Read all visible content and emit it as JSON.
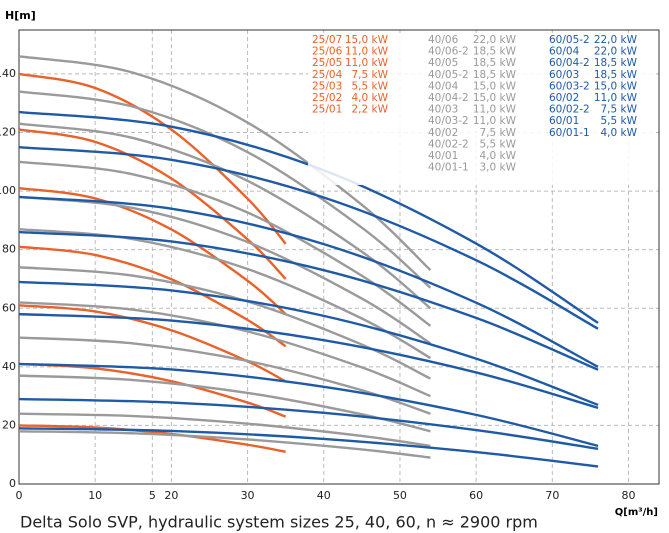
{
  "chart_data": {
    "type": "line",
    "ylabel": "H[m]",
    "xlabel": "Q[m³/h]",
    "caption": "Delta Solo SVP, hydraulic system sizes 25, 40, 60, n ≈ 2900 rpm",
    "xlim": [
      0,
      84
    ],
    "ylim": [
      0,
      155
    ],
    "xticks": [
      0,
      10,
      {
        "value": 17.5,
        "label": "5"
      },
      20,
      30,
      40,
      50,
      60,
      70,
      80
    ],
    "yticks": [
      0,
      20,
      40,
      60,
      80,
      100,
      120,
      140
    ],
    "grid": true,
    "series": [
      {
        "name": "25/07",
        "power": "15,0  kW",
        "color": "#e8622a",
        "x": [
          0,
          10,
          20,
          30,
          35
        ],
        "values": [
          140,
          135.2,
          121,
          97.4,
          82
        ]
      },
      {
        "name": "25/06",
        "power": "11,0  kW",
        "color": "#e8622a",
        "x": [
          0,
          10,
          20,
          30,
          35
        ],
        "values": [
          121,
          116.8,
          104.3,
          83.5,
          70
        ]
      },
      {
        "name": "25/05",
        "power": "11,0  kW",
        "color": "#e8622a",
        "x": [
          0,
          10,
          20,
          30,
          35
        ],
        "values": [
          101,
          97.5,
          86.9,
          69.4,
          58
        ]
      },
      {
        "name": "25/04",
        "power": "7,5  kW",
        "color": "#e8622a",
        "x": [
          0,
          10,
          20,
          30,
          35
        ],
        "values": [
          81,
          78.2,
          69.9,
          56,
          47
        ]
      },
      {
        "name": "25/03",
        "power": "5,5  kW",
        "color": "#e8622a",
        "x": [
          0,
          10,
          20,
          30,
          35
        ],
        "values": [
          61,
          58.9,
          52.5,
          41.9,
          35
        ]
      },
      {
        "name": "25/02",
        "power": "4,0  kW",
        "color": "#e8622a",
        "x": [
          0,
          10,
          20,
          30,
          35
        ],
        "values": [
          41,
          39.5,
          35.1,
          27.8,
          23
        ]
      },
      {
        "name": "25/01",
        "power": "2,2  kW",
        "color": "#e8622a",
        "x": [
          0,
          10,
          20,
          30,
          35
        ],
        "values": [
          20,
          19.3,
          17.1,
          13.4,
          11
        ]
      },
      {
        "name": "40/06",
        "power": "22,0  kW",
        "color": "#9a9a9a",
        "x": [
          0,
          15,
          30,
          45,
          54
        ],
        "values": [
          146,
          140.4,
          123.4,
          95.3,
          73
        ]
      },
      {
        "name": "40/06-2",
        "power": "18,5  kW",
        "color": "#9a9a9a",
        "x": [
          0,
          15,
          30,
          45,
          54
        ],
        "values": [
          134,
          128.8,
          113.3,
          87.5,
          67
        ]
      },
      {
        "name": "40/05",
        "power": "18,5  kW",
        "color": "#9a9a9a",
        "x": [
          0,
          15,
          30,
          45,
          54
        ],
        "values": [
          123,
          118.1,
          103.5,
          79.3,
          60
        ]
      },
      {
        "name": "40/05-2",
        "power": "18,5  kW",
        "color": "#9a9a9a",
        "x": [
          0,
          15,
          30,
          45,
          54
        ],
        "values": [
          110,
          105.7,
          92.7,
          71.1,
          54
        ]
      },
      {
        "name": "40/04",
        "power": "15,0  kW",
        "color": "#9a9a9a",
        "x": [
          0,
          15,
          30,
          45,
          54
        ],
        "values": [
          98,
          94.2,
          82.6,
          63.3,
          48
        ]
      },
      {
        "name": "40/04-2",
        "power": "15,0  kW",
        "color": "#9a9a9a",
        "x": [
          0,
          15,
          30,
          45,
          54
        ],
        "values": [
          87,
          83.6,
          73.4,
          56.5,
          43
        ]
      },
      {
        "name": "40/03",
        "power": "11,0  kW",
        "color": "#9a9a9a",
        "x": [
          0,
          15,
          30,
          45,
          54
        ],
        "values": [
          74,
          71.1,
          62.3,
          47.6,
          36
        ]
      },
      {
        "name": "40/03-2",
        "power": "11,0  kW",
        "color": "#9a9a9a",
        "x": [
          0,
          15,
          30,
          45,
          54
        ],
        "values": [
          62,
          59.5,
          52.1,
          39.8,
          30
        ]
      },
      {
        "name": "40/02",
        "power": "7,5  kW",
        "color": "#9a9a9a",
        "x": [
          0,
          15,
          30,
          45,
          54
        ],
        "values": [
          50,
          48,
          42,
          32,
          24
        ]
      },
      {
        "name": "40/02-2",
        "power": "5,5  kW",
        "color": "#9a9a9a",
        "x": [
          0,
          15,
          30,
          45,
          54
        ],
        "values": [
          37,
          35.5,
          31.1,
          23.8,
          18
        ]
      },
      {
        "name": "40/01",
        "power": "4,0  kW",
        "color": "#9a9a9a",
        "x": [
          0,
          15,
          30,
          45,
          54
        ],
        "values": [
          24,
          23.2,
          20.6,
          16.4,
          13
        ]
      },
      {
        "name": "40/01-1",
        "power": "3,0  kW",
        "color": "#9a9a9a",
        "x": [
          0,
          15,
          30,
          45,
          54
        ],
        "values": [
          18,
          17.3,
          15.2,
          11.8,
          9
        ]
      },
      {
        "name": "60/05-2",
        "power": "22,0  kW",
        "color": "#1f5aa6",
        "x": [
          0,
          20,
          40,
          60,
          76
        ],
        "values": [
          127,
          122,
          107.1,
          82.1,
          55
        ]
      },
      {
        "name": "60/04",
        "power": "22,0  kW",
        "color": "#1f5aa6",
        "x": [
          0,
          20,
          40,
          60,
          76
        ],
        "values": [
          115,
          110.7,
          97.8,
          76.4,
          53
        ]
      },
      {
        "name": "60/04-2",
        "power": "18,5  kW",
        "color": "#1f5aa6",
        "x": [
          0,
          20,
          40,
          60,
          76
        ],
        "values": [
          98,
          94,
          81.9,
          61.9,
          40
        ]
      },
      {
        "name": "60/03",
        "power": "18,5  kW",
        "color": "#1f5aa6",
        "x": [
          0,
          20,
          40,
          60,
          76
        ],
        "values": [
          86,
          82.8,
          73,
          56.7,
          39
        ]
      },
      {
        "name": "60/03-2",
        "power": "15,0  kW",
        "color": "#1f5aa6",
        "x": [
          0,
          20,
          40,
          60,
          76
        ],
        "values": [
          69,
          66.1,
          57.4,
          42.8,
          27
        ]
      },
      {
        "name": "60/02",
        "power": "11,0  kW",
        "color": "#1f5aa6",
        "x": [
          0,
          20,
          40,
          60,
          76
        ],
        "values": [
          58,
          55.8,
          49.1,
          38.1,
          26
        ]
      },
      {
        "name": "60/02-2",
        "power": "7,5  kW",
        "color": "#1f5aa6",
        "x": [
          0,
          20,
          40,
          60,
          76
        ],
        "values": [
          41,
          39.1,
          33.2,
          23.6,
          13
        ]
      },
      {
        "name": "60/01",
        "power": "5,5  kW",
        "color": "#1f5aa6",
        "x": [
          0,
          20,
          40,
          60,
          76
        ],
        "values": [
          29,
          27.8,
          24.3,
          18.4,
          12
        ]
      },
      {
        "name": "60/01-1",
        "power": "4,0  kW",
        "color": "#1f5aa6",
        "x": [
          0,
          20,
          40,
          60,
          76
        ],
        "values": [
          19,
          18.1,
          15.4,
          10.9,
          6
        ]
      }
    ]
  }
}
